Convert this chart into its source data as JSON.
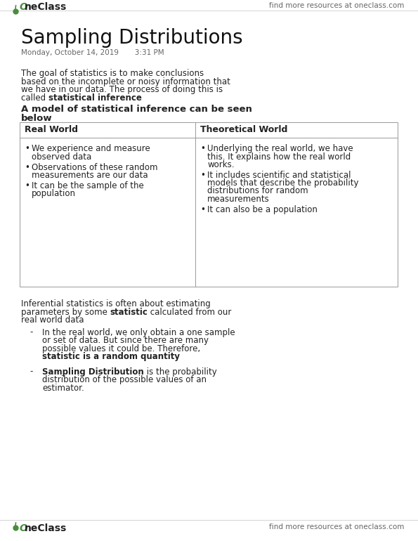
{
  "bg_color": "#ffffff",
  "logo_color": "#4a8c3f",
  "header_text": "find more resources at oneclass.com",
  "title": "Sampling Distributions",
  "date_line": "Monday, October 14, 2019       3:31 PM",
  "text_color": "#222222",
  "gray_color": "#666666",
  "border_color": "#999999",
  "font_size_title": 20,
  "font_size_body": 8.5,
  "font_size_subhead": 9.5,
  "font_size_header": 7.5,
  "font_size_logo": 10,
  "font_size_date": 7.5,
  "font_size_table": 8.5
}
